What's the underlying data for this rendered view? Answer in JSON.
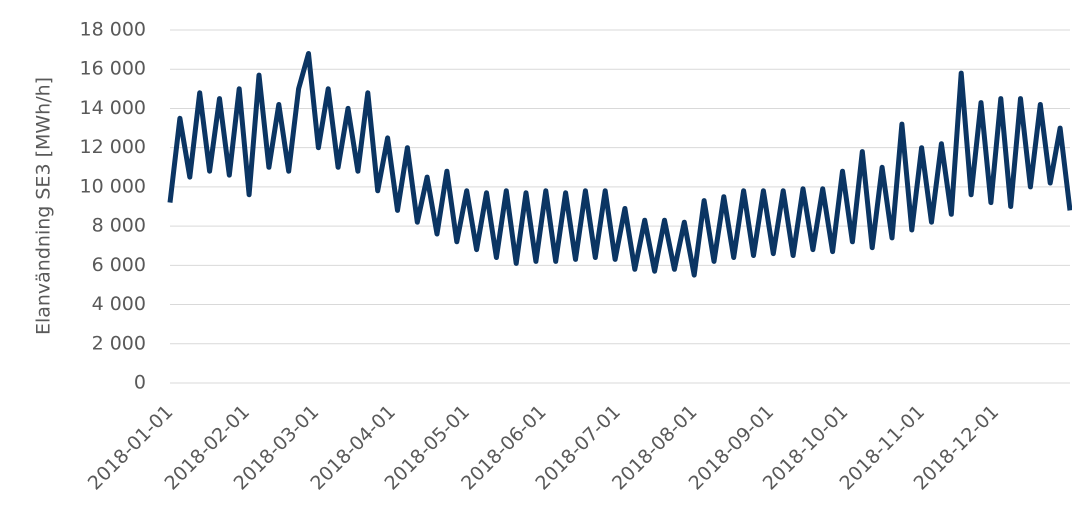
{
  "chart_data": {
    "type": "line",
    "y_label": "Elanvändning SE3 [MWh/h]",
    "x": [
      "2018-01-01",
      "2018-01-05",
      "2018-01-09",
      "2018-01-13",
      "2018-01-17",
      "2018-01-21",
      "2018-01-25",
      "2018-01-29",
      "2018-02-02",
      "2018-02-06",
      "2018-02-10",
      "2018-02-14",
      "2018-02-18",
      "2018-02-22",
      "2018-02-26",
      "2018-03-02",
      "2018-03-06",
      "2018-03-10",
      "2018-03-14",
      "2018-03-18",
      "2018-03-22",
      "2018-03-26",
      "2018-03-30",
      "2018-04-03",
      "2018-04-07",
      "2018-04-11",
      "2018-04-15",
      "2018-04-19",
      "2018-04-23",
      "2018-04-27",
      "2018-05-01",
      "2018-05-05",
      "2018-05-09",
      "2018-05-13",
      "2018-05-17",
      "2018-05-21",
      "2018-05-25",
      "2018-05-29",
      "2018-06-02",
      "2018-06-06",
      "2018-06-10",
      "2018-06-14",
      "2018-06-18",
      "2018-06-22",
      "2018-06-26",
      "2018-06-30",
      "2018-07-04",
      "2018-07-08",
      "2018-07-12",
      "2018-07-16",
      "2018-07-20",
      "2018-07-24",
      "2018-07-28",
      "2018-08-01",
      "2018-08-05",
      "2018-08-09",
      "2018-08-13",
      "2018-08-17",
      "2018-08-21",
      "2018-08-25",
      "2018-08-29",
      "2018-09-02",
      "2018-09-06",
      "2018-09-10",
      "2018-09-14",
      "2018-09-18",
      "2018-09-22",
      "2018-09-26",
      "2018-09-30",
      "2018-10-04",
      "2018-10-08",
      "2018-10-12",
      "2018-10-16",
      "2018-10-20",
      "2018-10-24",
      "2018-10-28",
      "2018-11-01",
      "2018-11-05",
      "2018-11-09",
      "2018-11-13",
      "2018-11-17",
      "2018-11-21",
      "2018-11-25",
      "2018-11-29",
      "2018-12-03",
      "2018-12-07",
      "2018-12-11",
      "2018-12-15",
      "2018-12-19",
      "2018-12-23",
      "2018-12-27",
      "2018-12-31"
    ],
    "series": [
      {
        "color": "#0b3563",
        "values": [
          9200,
          13500,
          10500,
          14800,
          10800,
          14500,
          10600,
          15000,
          9600,
          15700,
          11000,
          14200,
          10800,
          15000,
          16800,
          12000,
          15000,
          11000,
          14000,
          10800,
          14800,
          9800,
          12500,
          8800,
          12000,
          8200,
          10500,
          7600,
          10800,
          7200,
          9800,
          6800,
          9700,
          6400,
          9800,
          6100,
          9700,
          6200,
          9800,
          6200,
          9700,
          6300,
          9800,
          6400,
          9800,
          6300,
          8900,
          5800,
          8300,
          5700,
          8300,
          5800,
          8200,
          5500,
          9300,
          6200,
          9500,
          6400,
          9800,
          6500,
          9800,
          6600,
          9800,
          6500,
          9900,
          6800,
          9900,
          6700,
          10800,
          7200,
          11800,
          6900,
          11000,
          7400,
          13200,
          7800,
          12000,
          8200,
          12200,
          8600,
          15800,
          9600,
          14300,
          9200,
          14500,
          9000,
          14500,
          10000,
          14200,
          10200,
          13000,
          8800
        ]
      }
    ],
    "xlim": [
      "2018-01-01",
      "2018-12-31"
    ],
    "xticks": [
      "2018-01-01",
      "2018-02-01",
      "2018-03-01",
      "2018-04-01",
      "2018-05-01",
      "2018-06-01",
      "2018-07-01",
      "2018-08-01",
      "2018-09-01",
      "2018-10-01",
      "2018-11-01",
      "2018-12-01"
    ],
    "ylim": [
      0,
      18000
    ],
    "yticks": [
      0,
      {
        "value": 2000,
        "label": "2 000"
      },
      {
        "value": 4000,
        "label": "4 000"
      },
      {
        "value": 6000,
        "label": "6 000"
      },
      {
        "value": 8000,
        "label": "8 000"
      },
      {
        "value": 10000,
        "label": "10 000"
      },
      {
        "value": 12000,
        "label": "12 000"
      },
      {
        "value": 14000,
        "label": "14 000"
      },
      {
        "value": 16000,
        "label": "16 000"
      },
      {
        "value": 18000,
        "label": "18 000"
      }
    ],
    "grid": true
  }
}
